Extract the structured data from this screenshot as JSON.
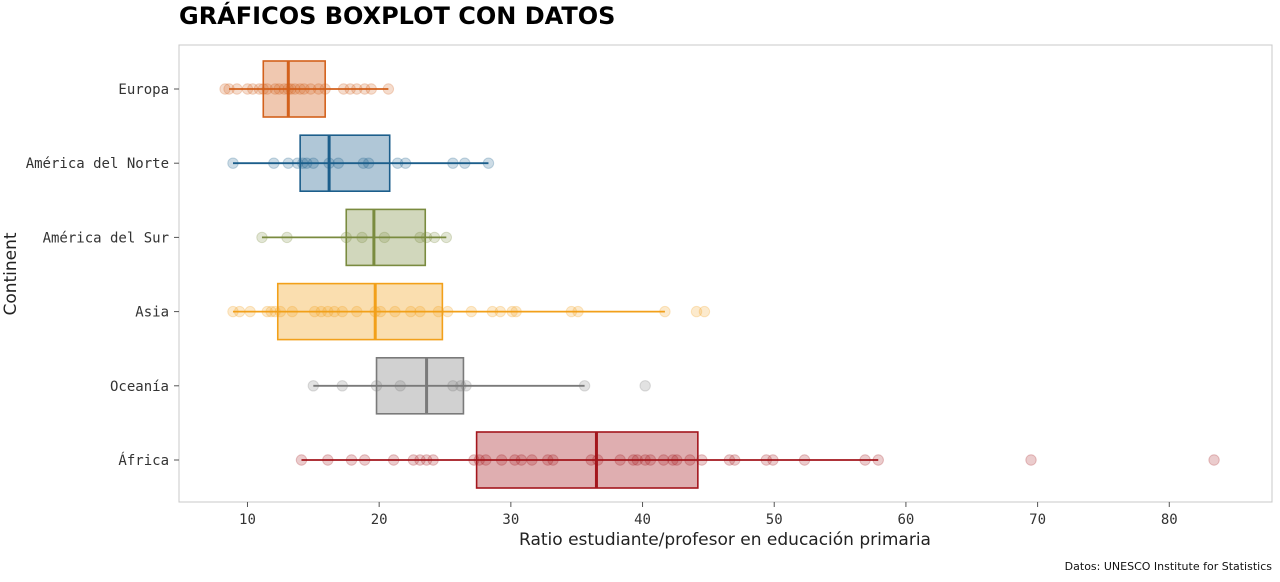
{
  "chart_data": {
    "type": "boxplot",
    "title": "GRÁFICOS BOXPLOT CON DATOS",
    "xlabel": "Ratio estudiante/profesor en educación primaria",
    "ylabel": "Continent",
    "source": "Datos: UNESCO Institute for Statistics",
    "xlim": [
      4.8,
      87.8
    ],
    "xticks": [
      10,
      20,
      30,
      40,
      50,
      60,
      70,
      80
    ],
    "xtick_labels": [
      "10",
      "20",
      "30",
      "40",
      "50",
      "60",
      "70",
      "80"
    ],
    "grid": false,
    "categories": [
      "Europa",
      "América del Norte",
      "América del Sur",
      "Asia",
      "Oceanía",
      "África"
    ],
    "series": [
      {
        "name": "Europa",
        "color": "#D3611C",
        "whisker_low": 8.6,
        "q1": 11.2,
        "median": 13.1,
        "q3": 15.9,
        "whisker_high": 20.7,
        "points": [
          8.3,
          8.6,
          9.2,
          10.0,
          10.4,
          10.9,
          11.2,
          11.5,
          12.1,
          12.4,
          12.8,
          13.1,
          13.3,
          13.6,
          14.0,
          14.3,
          14.8,
          15.4,
          15.9,
          17.3,
          17.8,
          18.3,
          18.9,
          19.4,
          20.7
        ]
      },
      {
        "name": "América del Norte",
        "color": "#1C5E8B",
        "whisker_low": 8.9,
        "q1": 14.0,
        "median": 16.2,
        "q3": 20.8,
        "whisker_high": 28.3,
        "points": [
          8.9,
          12.0,
          13.1,
          13.8,
          14.2,
          14.5,
          15.0,
          16.2,
          16.9,
          18.8,
          19.2,
          21.4,
          22.0,
          25.6,
          26.5,
          28.3
        ]
      },
      {
        "name": "América del Sur",
        "color": "#7A8B3F",
        "whisker_low": 11.1,
        "q1": 17.5,
        "median": 19.6,
        "q3": 23.5,
        "whisker_high": 25.1,
        "points": [
          11.1,
          13.0,
          17.5,
          18.7,
          20.4,
          23.1,
          23.6,
          24.2,
          25.1
        ]
      },
      {
        "name": "Asia",
        "color": "#F2A01A",
        "whisker_low": 8.9,
        "q1": 12.3,
        "median": 19.7,
        "q3": 24.8,
        "whisker_high": 41.7,
        "points": [
          8.9,
          9.4,
          10.2,
          11.5,
          11.8,
          12.1,
          12.5,
          13.4,
          15.1,
          15.6,
          16.1,
          16.6,
          17.2,
          18.3,
          19.7,
          20.1,
          21.2,
          22.4,
          23.1,
          24.5,
          25.2,
          27.0,
          28.6,
          29.2,
          30.1,
          30.4,
          34.6,
          35.1,
          41.7,
          44.1,
          44.7
        ]
      },
      {
        "name": "Oceanía",
        "color": "#7A7A7A",
        "whisker_low": 15.0,
        "q1": 19.8,
        "median": 23.6,
        "q3": 26.4,
        "whisker_high": 35.6,
        "points": [
          15.0,
          17.2,
          19.8,
          21.6,
          25.6,
          26.2,
          26.6,
          35.6,
          40.2
        ]
      },
      {
        "name": "África",
        "color": "#A3161D",
        "whisker_low": 14.1,
        "q1": 27.4,
        "median": 36.5,
        "q3": 44.2,
        "whisker_high": 57.9,
        "points": [
          14.1,
          16.1,
          17.9,
          18.9,
          21.1,
          22.6,
          23.1,
          23.6,
          24.1,
          27.2,
          27.6,
          28.1,
          29.3,
          30.3,
          30.8,
          31.6,
          32.8,
          33.2,
          36.1,
          36.6,
          38.3,
          39.3,
          39.6,
          40.2,
          40.6,
          41.6,
          42.3,
          42.6,
          43.6,
          44.5,
          46.6,
          47.0,
          49.4,
          49.9,
          52.3,
          56.9,
          57.9,
          69.5,
          83.4
        ]
      }
    ]
  }
}
